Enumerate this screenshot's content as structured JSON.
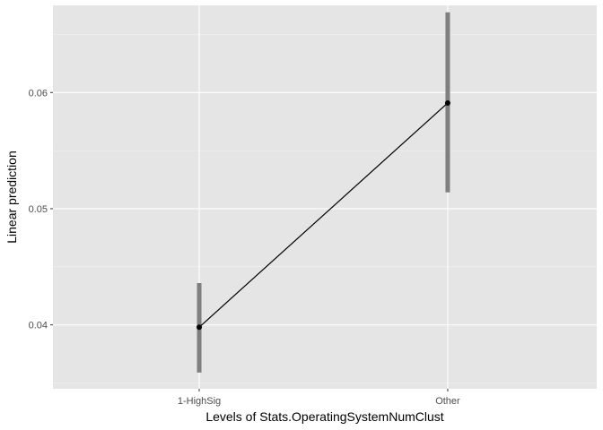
{
  "chart_data": {
    "type": "line",
    "categories": [
      "1-HighSig",
      "Other"
    ],
    "series": [
      {
        "values": [
          0.0398,
          0.0591
        ],
        "ci_lower": [
          0.0359,
          0.0514
        ],
        "ci_upper": [
          0.0436,
          0.0669
        ]
      }
    ],
    "xlabel": "Levels of Stats.OperatingSystemNumClust",
    "ylabel": "Linear prediction",
    "yticks": [
      0.04,
      0.05,
      0.06
    ],
    "ytick_labels": [
      "0.04",
      "0.05",
      "0.06"
    ],
    "ylim": [
      0.0345,
      0.0675
    ],
    "grid": true,
    "colors": {
      "panel_background": "#e5e5e5",
      "grid_major": "#ffffff",
      "grid_minor": "#f2f2f2",
      "line": "#000000",
      "point": "#000000",
      "errorbar": "#7f7f7f",
      "tick_label": "#4d4d4d",
      "tick_mark": "#333333"
    }
  }
}
